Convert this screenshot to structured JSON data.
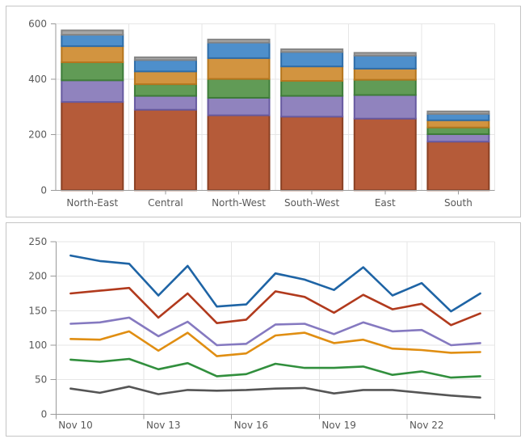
{
  "style": {
    "background": "#ffffff",
    "panel_border": "#c5c5c5",
    "axis_line_color": "#9a9a9a",
    "grid_color": "#e6e6e6",
    "label_color": "#595959"
  },
  "chart_data": [
    {
      "type": "bar",
      "stacked": true,
      "title": "",
      "xlabel": "",
      "ylabel": "",
      "legend": "none",
      "grid": true,
      "ylim": [
        0,
        600
      ],
      "yticks": [
        0,
        200,
        400,
        600
      ],
      "categories": [
        "North-East",
        "Central",
        "North-West",
        "South-West",
        "East",
        "South"
      ],
      "series": [
        {
          "name": "stack-rust",
          "color": "#b55b39",
          "border": "#8a4023",
          "values": [
            318,
            290,
            270,
            265,
            258,
            175
          ]
        },
        {
          "name": "stack-purple",
          "color": "#9083be",
          "border": "#675aa0",
          "values": [
            78,
            50,
            63,
            75,
            85,
            27
          ]
        },
        {
          "name": "stack-green",
          "color": "#619b56",
          "border": "#3e7c39",
          "values": [
            65,
            42,
            68,
            54,
            55,
            24
          ]
        },
        {
          "name": "stack-orange",
          "color": "#d29440",
          "border": "#b5761e",
          "values": [
            58,
            46,
            75,
            52,
            40,
            26
          ]
        },
        {
          "name": "stack-blue",
          "color": "#4e8fcb",
          "border": "#2f6da8",
          "values": [
            41,
            41,
            56,
            52,
            47,
            23
          ]
        },
        {
          "name": "stack-gray",
          "color": "#a6a6a6",
          "border": "#858585",
          "values": [
            16,
            10,
            11,
            10,
            10,
            9
          ]
        }
      ]
    },
    {
      "type": "line",
      "title": "",
      "xlabel": "",
      "ylabel": "",
      "legend": "none",
      "grid": true,
      "ylim": [
        0,
        250
      ],
      "yticks": [
        0,
        50,
        100,
        150,
        200,
        250
      ],
      "x": [
        "Nov 10",
        "Nov 11",
        "Nov 12",
        "Nov 13",
        "Nov 14",
        "Nov 15",
        "Nov 16",
        "Nov 17",
        "Nov 18",
        "Nov 19",
        "Nov 20",
        "Nov 21",
        "Nov 22",
        "Nov 23",
        "Nov 24"
      ],
      "xtick_labels": [
        "Nov 10",
        "Nov 13",
        "Nov 16",
        "Nov 19",
        "Nov 22"
      ],
      "xtick_every": 3,
      "series": [
        {
          "name": "line-blue",
          "color": "#1e64a5",
          "values": [
            230,
            222,
            218,
            172,
            215,
            156,
            159,
            204,
            195,
            180,
            213,
            172,
            190,
            149,
            175
          ]
        },
        {
          "name": "line-red",
          "color": "#b13a1d",
          "values": [
            175,
            179,
            183,
            140,
            175,
            132,
            137,
            178,
            170,
            147,
            173,
            152,
            160,
            129,
            146
          ]
        },
        {
          "name": "line-purple",
          "color": "#8579c0",
          "values": [
            131,
            133,
            140,
            113,
            134,
            100,
            102,
            130,
            131,
            116,
            133,
            120,
            122,
            100,
            103
          ]
        },
        {
          "name": "line-orange",
          "color": "#e08e12",
          "values": [
            109,
            108,
            120,
            92,
            118,
            84,
            88,
            114,
            118,
            103,
            108,
            95,
            93,
            89,
            90
          ]
        },
        {
          "name": "line-green",
          "color": "#318f3d",
          "values": [
            79,
            76,
            80,
            65,
            74,
            55,
            58,
            73,
            67,
            67,
            69,
            57,
            62,
            53,
            55
          ]
        },
        {
          "name": "line-gray",
          "color": "#555555",
          "values": [
            37,
            31,
            40,
            29,
            35,
            34,
            35,
            37,
            38,
            30,
            35,
            35,
            31,
            27,
            24
          ]
        }
      ]
    }
  ]
}
